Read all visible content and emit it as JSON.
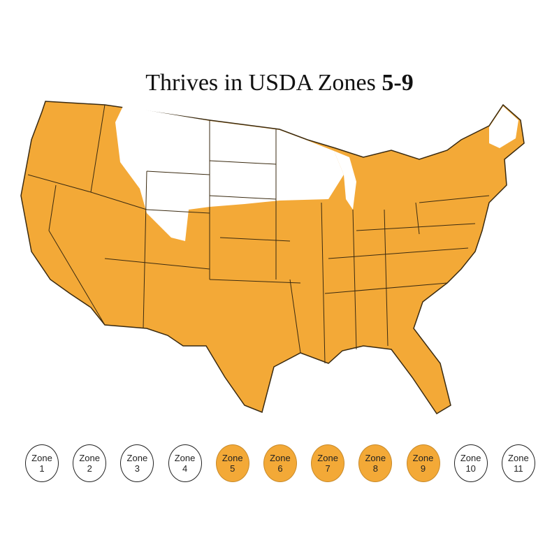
{
  "title": {
    "prefix": "Thrives in USDA Zones ",
    "range": "5-9"
  },
  "colors": {
    "highlight": "#f3a937",
    "outline": "#3a2a10",
    "unsuitable": "#ffffff"
  },
  "zones": [
    {
      "label": "Zone",
      "number": "1",
      "highlighted": false
    },
    {
      "label": "Zone",
      "number": "2",
      "highlighted": false
    },
    {
      "label": "Zone",
      "number": "3",
      "highlighted": false
    },
    {
      "label": "Zone",
      "number": "4",
      "highlighted": false
    },
    {
      "label": "Zone",
      "number": "5",
      "highlighted": true
    },
    {
      "label": "Zone",
      "number": "6",
      "highlighted": true
    },
    {
      "label": "Zone",
      "number": "7",
      "highlighted": true
    },
    {
      "label": "Zone",
      "number": "8",
      "highlighted": true
    },
    {
      "label": "Zone",
      "number": "9",
      "highlighted": true
    },
    {
      "label": "Zone",
      "number": "10",
      "highlighted": false
    },
    {
      "label": "Zone",
      "number": "11",
      "highlighted": false
    }
  ]
}
